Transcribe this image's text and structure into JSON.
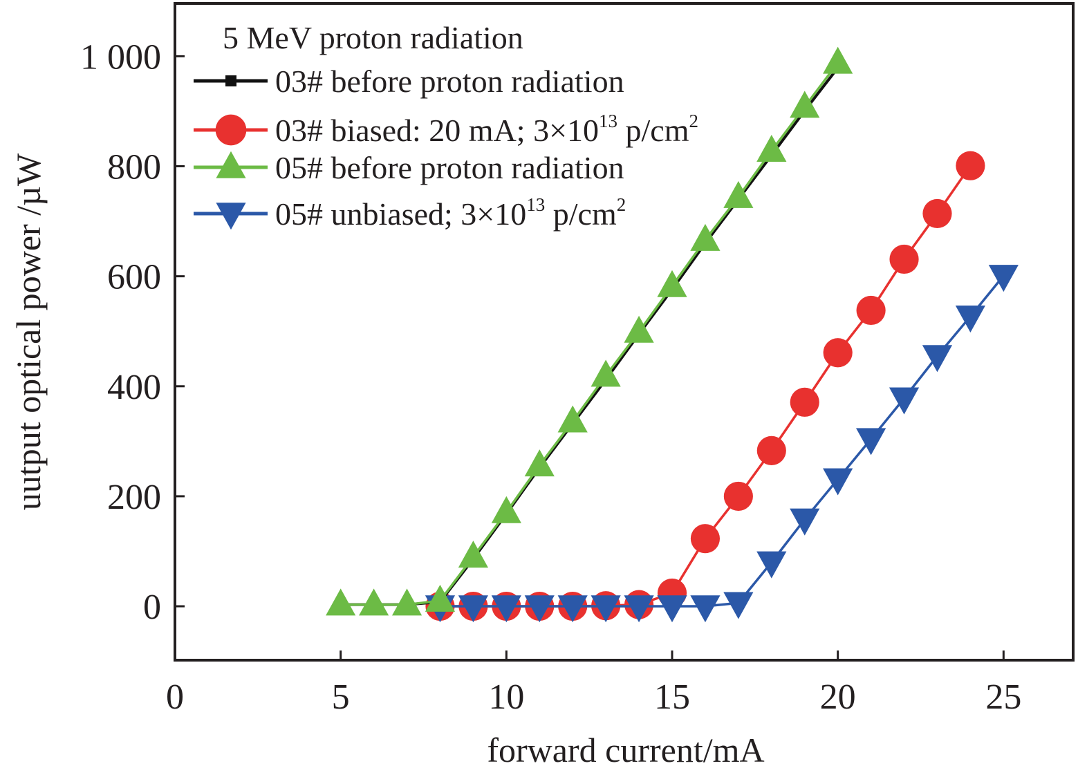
{
  "chart_data": {
    "type": "line",
    "title": "",
    "xlabel": "forward current/mA",
    "ylabel": "uutput optical power /µW",
    "xlim": [
      0,
      27.1
    ],
    "ylim": [
      -98,
      1096
    ],
    "xticks": [
      0,
      5,
      10,
      15,
      20,
      25
    ],
    "xtick_labels": [
      "0",
      "5",
      "10",
      "15",
      "20",
      "25"
    ],
    "yticks": [
      0,
      200,
      400,
      600,
      800,
      1000
    ],
    "ytick_labels": [
      "0",
      "200",
      "400",
      "600",
      "800",
      "1 000"
    ],
    "grid": false,
    "legend": {
      "placement": "top-left",
      "title": "5 MeV proton radiation"
    },
    "series": [
      {
        "name": "03# before proton radiation",
        "label_main": "03# before proton radiation",
        "label_sup": "",
        "label_tail": "",
        "color": "#111111",
        "marker": "square",
        "x": [
          5,
          6,
          7,
          8,
          9,
          10,
          11,
          12,
          13,
          14,
          15,
          16,
          17,
          18,
          19,
          20
        ],
        "y": [
          3,
          3,
          3,
          8,
          86,
          168,
          252,
          332,
          412,
          495,
          576,
          660,
          740,
          820,
          901,
          979
        ]
      },
      {
        "name": "03# biased: 20 mA; 3×10^13 p/cm^2",
        "label_main": "03# biased: 20 mA; 3×10",
        "label_sup": "13",
        "label_tail": " p/cm",
        "label_sup2": "2",
        "color": "#e8312f",
        "marker": "circle",
        "x": [
          8,
          9,
          10,
          11,
          12,
          13,
          14,
          15,
          16,
          17,
          18,
          19,
          20,
          21,
          22,
          23,
          24
        ],
        "y": [
          0,
          0,
          0,
          0,
          0,
          1,
          3,
          24,
          123,
          200,
          283,
          371,
          461,
          538,
          631,
          714,
          801
        ]
      },
      {
        "name": "05# before proton radiation",
        "label_main": "05# before proton radiation",
        "label_sup": "",
        "label_tail": "",
        "color": "#6cbb45",
        "marker": "triangle-up",
        "x": [
          5,
          6,
          7,
          8,
          9,
          10,
          11,
          12,
          13,
          14,
          15,
          16,
          17,
          18,
          19,
          20
        ],
        "y": [
          3,
          3,
          3,
          10,
          90,
          171,
          256,
          336,
          419,
          499,
          582,
          666,
          744,
          828,
          908,
          988
        ]
      },
      {
        "name": "05# unbiased; 3×10^13 p/cm^2",
        "label_main": "05# unbiased; 3×10",
        "label_sup": "13",
        "label_tail": " p/cm",
        "label_sup2": "2",
        "color": "#2b58a8",
        "marker": "triangle-down",
        "x": [
          8,
          9,
          10,
          11,
          12,
          13,
          14,
          15,
          16,
          17,
          18,
          19,
          20,
          21,
          22,
          23,
          24,
          25
        ],
        "y": [
          0,
          0,
          0,
          0,
          0,
          0,
          0,
          0,
          0,
          6,
          80,
          158,
          231,
          304,
          378,
          455,
          527,
          601
        ]
      }
    ]
  }
}
